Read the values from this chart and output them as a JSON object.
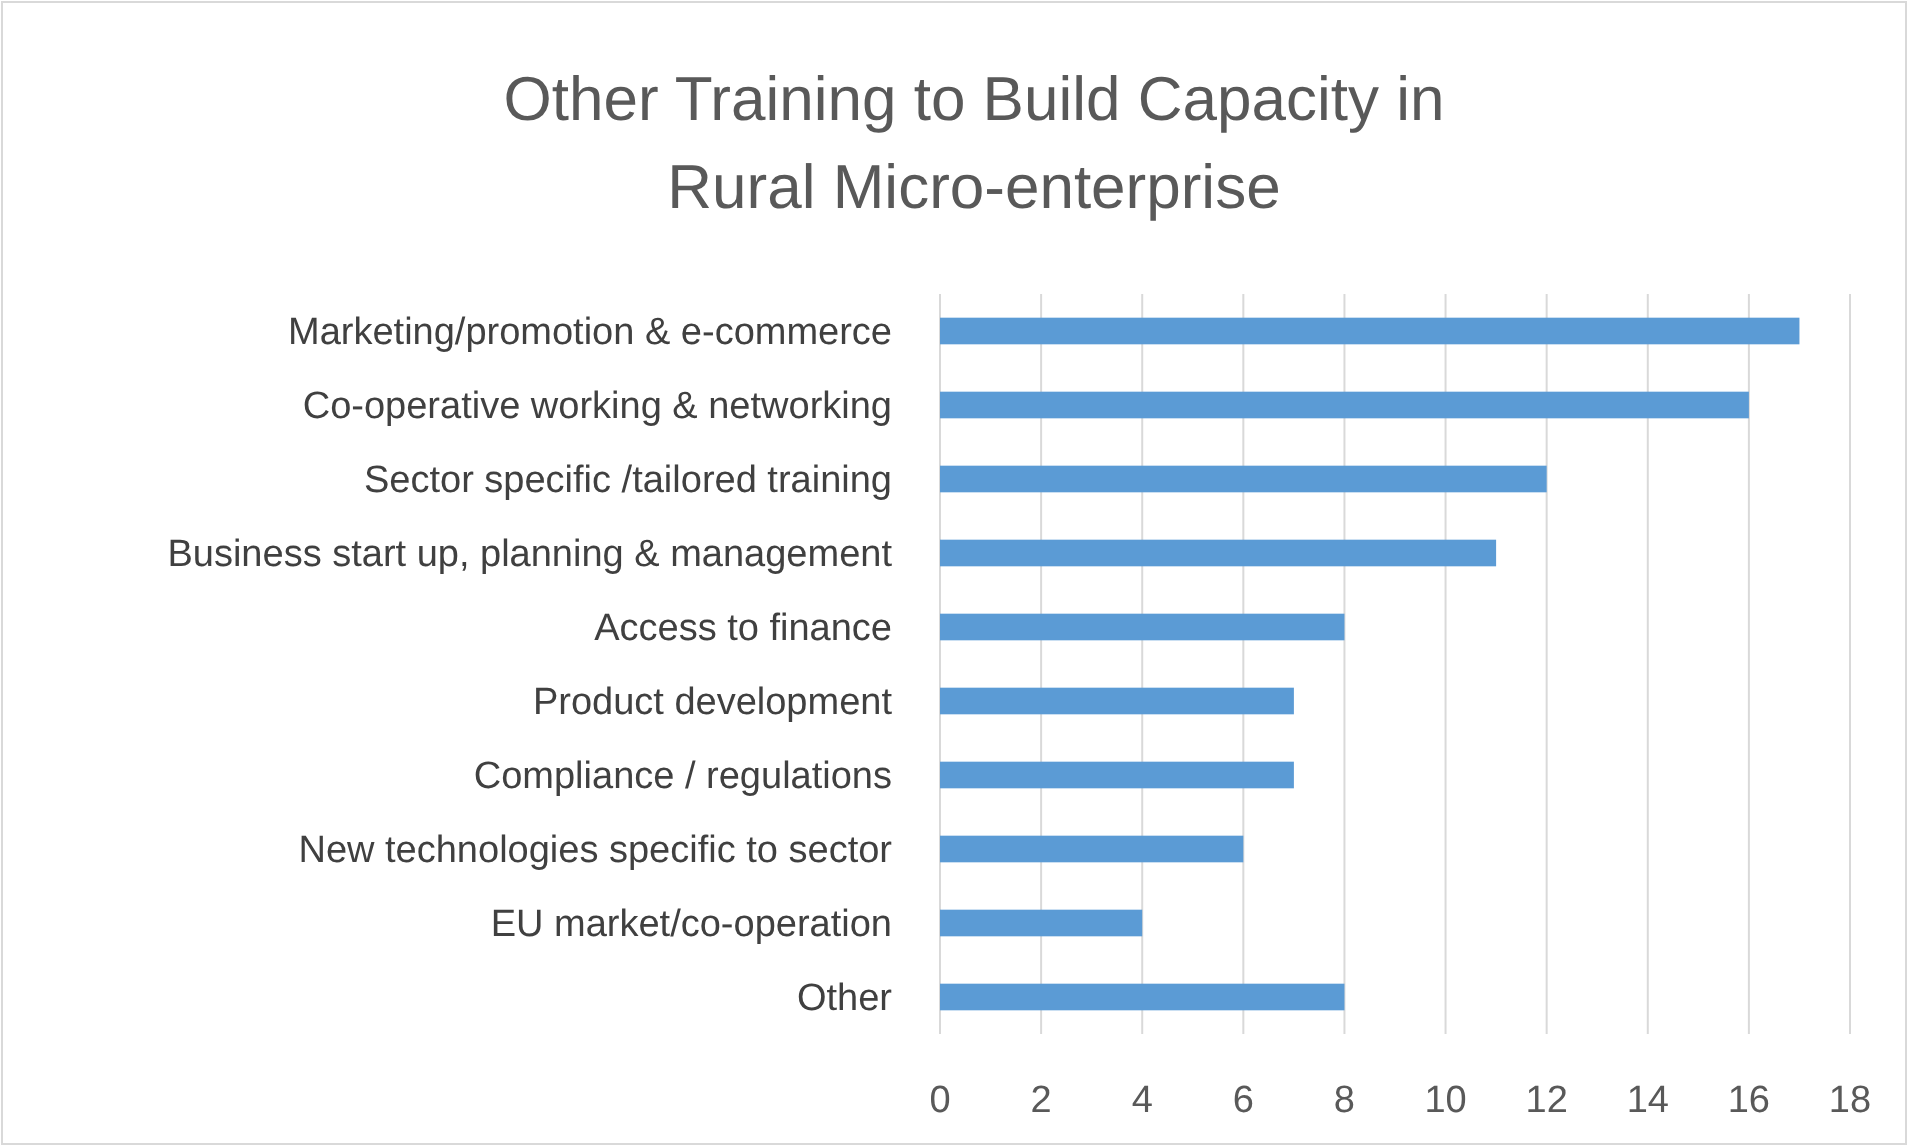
{
  "chart_data": {
    "type": "bar",
    "orientation": "horizontal",
    "title": "Other Training to Build Capacity in Rural Micro-enterprise",
    "categories": [
      "Marketing/promotion & e-commerce",
      "Co-operative working & networking",
      "Sector specific /tailored training",
      "Business start up, planning & management",
      "Access to finance",
      "Product development",
      "Compliance / regulations",
      "New technologies specific to sector",
      "EU market/co-operation",
      "Other"
    ],
    "values": [
      17,
      16,
      12,
      11,
      8,
      7,
      7,
      6,
      4,
      8
    ],
    "color": "#5b9bd5",
    "xlim": [
      0,
      18
    ],
    "xticks": [
      0,
      2,
      4,
      6,
      8,
      10,
      12,
      14,
      16,
      18
    ],
    "grid": "x"
  }
}
